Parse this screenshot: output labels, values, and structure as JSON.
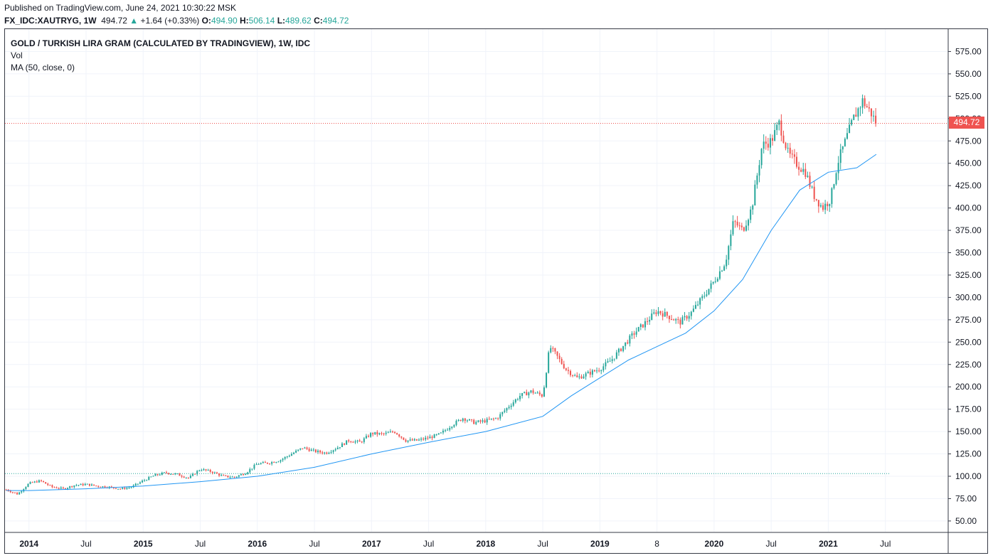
{
  "header": {
    "published": "Published on TradingView.com, June 24, 2021 10:30:22 MSK",
    "symbol": "FX_IDC:XAUTRYG, 1W",
    "last": "494.72",
    "change": "+1.64 (+0.33%)",
    "o_label": "O:",
    "o": "494.90",
    "h_label": "H:",
    "h": "506.14",
    "l_label": "L:",
    "l": "489.62",
    "c_label": "C:",
    "c": "494.72"
  },
  "legend": {
    "title": "GOLD / TURKISH LIRA GRAM (CALCULATED BY TRADINGVIEW), 1W, IDC",
    "vol": "Vol",
    "ma": "MA (50, close, 0)"
  },
  "price_tag": "494.72",
  "colors": {
    "up": "#26a69a",
    "down": "#ef5350",
    "ma": "#2196f3",
    "grid": "#f0f3fa",
    "border": "#363a45"
  },
  "chart_data": {
    "type": "line",
    "subtype": "candlestick-weekly",
    "y_ticks": [
      50,
      75,
      100,
      125,
      150,
      175,
      200,
      225,
      250,
      275,
      300,
      325,
      350,
      375,
      400,
      425,
      450,
      475,
      500,
      525,
      550,
      575
    ],
    "ylim": [
      38,
      600
    ],
    "x_ticks": [
      "2014",
      "Jul",
      "2015",
      "Jul",
      "2016",
      "Jul",
      "2017",
      "Jul",
      "2018",
      "Jul",
      "2019",
      "8",
      "2020",
      "Jul",
      "2021",
      "Jul"
    ],
    "x_tick_years": [
      2014.0,
      2014.5,
      2015.0,
      2015.5,
      2016.0,
      2016.5,
      2017.0,
      2017.5,
      2018.0,
      2018.5,
      2019.0,
      2019.5,
      2020.0,
      2020.5,
      2021.0,
      2021.5
    ],
    "xlim": [
      2013.79,
      2022.05
    ],
    "last_close": 494.72,
    "reference_line": 103,
    "series": [
      {
        "name": "GOLD / TURKISH LIRA GRAM",
        "x": [
          2013.8,
          2013.9,
          2014.0,
          2014.1,
          2014.2,
          2014.3,
          2014.4,
          2014.5,
          2014.6,
          2014.7,
          2014.8,
          2014.9,
          2015.0,
          2015.1,
          2015.2,
          2015.3,
          2015.4,
          2015.5,
          2015.6,
          2015.7,
          2015.8,
          2015.9,
          2016.0,
          2016.1,
          2016.2,
          2016.3,
          2016.4,
          2016.5,
          2016.6,
          2016.7,
          2016.8,
          2016.9,
          2017.0,
          2017.1,
          2017.2,
          2017.3,
          2017.4,
          2017.5,
          2017.6,
          2017.7,
          2017.8,
          2017.9,
          2018.0,
          2018.1,
          2018.2,
          2018.3,
          2018.4,
          2018.5,
          2018.56,
          2018.62,
          2018.7,
          2018.8,
          2018.9,
          2019.0,
          2019.1,
          2019.2,
          2019.3,
          2019.4,
          2019.5,
          2019.6,
          2019.7,
          2019.8,
          2019.9,
          2020.0,
          2020.1,
          2020.17,
          2020.25,
          2020.33,
          2020.42,
          2020.5,
          2020.57,
          2020.65,
          2020.72,
          2020.8,
          2020.87,
          2020.95,
          2021.02,
          2021.08,
          2021.15,
          2021.22,
          2021.3,
          2021.38,
          2021.42
        ],
        "values": [
          85,
          80,
          92,
          95,
          88,
          86,
          90,
          91,
          89,
          88,
          86,
          88,
          95,
          101,
          104,
          102,
          98,
          108,
          105,
          100,
          99,
          104,
          114,
          115,
          118,
          125,
          132,
          128,
          126,
          132,
          140,
          138,
          148,
          147,
          150,
          140,
          140,
          143,
          147,
          157,
          165,
          160,
          162,
          165,
          178,
          190,
          195,
          190,
          245,
          235,
          220,
          210,
          215,
          220,
          230,
          245,
          260,
          272,
          285,
          279,
          272,
          283,
          300,
          318,
          340,
          385,
          375,
          400,
          470,
          475,
          495,
          460,
          450,
          440,
          415,
          400,
          410,
          450,
          475,
          500,
          520,
          505,
          494.72
        ]
      },
      {
        "name": "MA (50, close, 0)",
        "x": [
          2013.8,
          2014.0,
          2014.5,
          2015.0,
          2015.5,
          2016.0,
          2016.5,
          2017.0,
          2017.5,
          2018.0,
          2018.5,
          2018.75,
          2019.0,
          2019.25,
          2019.5,
          2019.75,
          2020.0,
          2020.25,
          2020.5,
          2020.75,
          2021.0,
          2021.25,
          2021.42
        ],
        "values": [
          84,
          84,
          86,
          89,
          94,
          100,
          110,
          125,
          138,
          150,
          167,
          190,
          210,
          230,
          245,
          260,
          285,
          320,
          375,
          420,
          440,
          445,
          460
        ]
      }
    ]
  }
}
